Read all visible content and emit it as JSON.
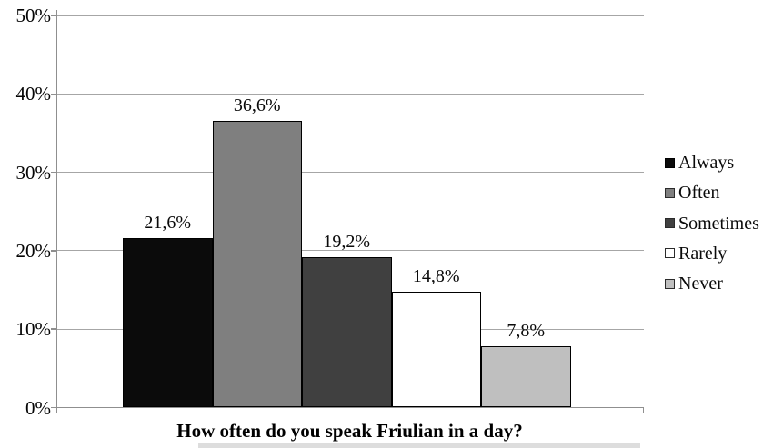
{
  "chart_data": {
    "type": "bar",
    "title": "How often do you speak Friulian in a day?",
    "categories": [
      "Always",
      "Often",
      "Sometimes",
      "Rarely",
      "Never"
    ],
    "values": [
      21.6,
      36.6,
      19.2,
      14.8,
      7.8
    ],
    "value_labels": [
      "21,6%",
      "36,6%",
      "19,2%",
      "14,8%",
      "7,8%"
    ],
    "y_ticks": [
      "0%",
      "10%",
      "20%",
      "30%",
      "40%",
      "50%"
    ],
    "y_tick_values": [
      0,
      10,
      20,
      30,
      40,
      50
    ],
    "ylim": [
      0,
      50
    ],
    "grid": true,
    "legend_position": "right",
    "bar_colors": [
      "#0b0b0b",
      "#7f7f7f",
      "#404040",
      "#ffffff",
      "#bfbfbf"
    ],
    "bar_border_color": "#000000",
    "gridline_color": "#a6a6a6",
    "axis_color": "#8f8f8f",
    "text_color": "#0a0a0a",
    "legend": [
      {
        "label": "Always",
        "color": "#0b0b0b"
      },
      {
        "label": "Often",
        "color": "#7f7f7f"
      },
      {
        "label": "Sometimes",
        "color": "#404040"
      },
      {
        "label": "Rarely",
        "color": "#ffffff"
      },
      {
        "label": "Never",
        "color": "#bfbfbf"
      }
    ]
  }
}
